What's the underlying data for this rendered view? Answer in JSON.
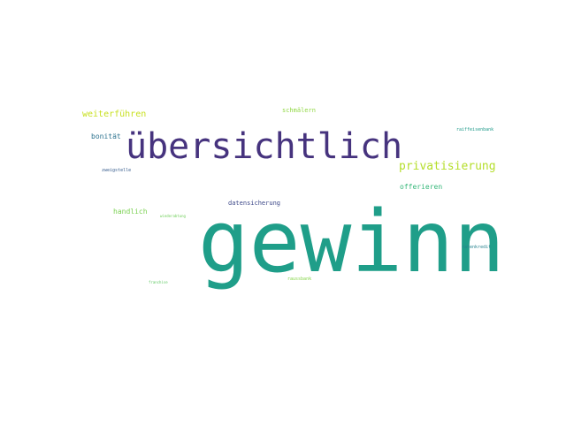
{
  "wordcloud": {
    "words": [
      {
        "text": "gewinn",
        "color": "#1f9e89"
      },
      {
        "text": "übersichtlich",
        "color": "#46337e"
      },
      {
        "text": "privatisierung",
        "color": "#b5de2b"
      },
      {
        "text": "weiterführen",
        "color": "#c8e020"
      },
      {
        "text": "schmälern",
        "color": "#90d743"
      },
      {
        "text": "raiffeisenbank",
        "color": "#1f9a8a"
      },
      {
        "text": "bonität",
        "color": "#2c728e"
      },
      {
        "text": "zweigstelle",
        "color": "#365c8d"
      },
      {
        "text": "offerieren",
        "color": "#35b779"
      },
      {
        "text": "datensicherung",
        "color": "#3e4989"
      },
      {
        "text": "handlich",
        "color": "#7ad151"
      },
      {
        "text": "wiederabtung",
        "color": "#6ece58"
      },
      {
        "text": "ratenkredit",
        "color": "#26828e"
      },
      {
        "text": "raussbank",
        "color": "#86d549"
      },
      {
        "text": "franchise",
        "color": "#5ec962"
      }
    ]
  }
}
